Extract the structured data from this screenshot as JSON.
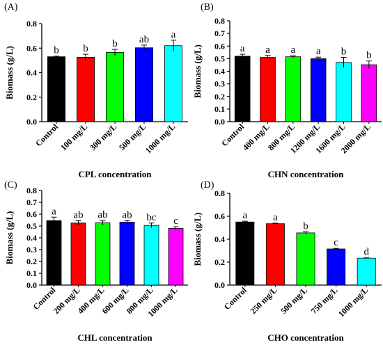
{
  "colors": [
    "#000000",
    "#ff0000",
    "#00ff00",
    "#0000ff",
    "#00ffff",
    "#ff00ff"
  ],
  "chart_data": [
    {
      "type": "bar",
      "panel_label": "(A)",
      "xlabel": "CPL concentration",
      "ylabel": "Biomass (g/L)",
      "ylim": [
        0,
        0.8
      ],
      "yticks": [
        "0.0",
        "0.2",
        "0.4",
        "0.6",
        "0.8"
      ],
      "categories": [
        "Control",
        "100 mg/L",
        "300 mg/L",
        "500 mg/L",
        "1000 mg/L"
      ],
      "values": [
        0.53,
        0.525,
        0.565,
        0.603,
        0.62
      ],
      "errors": [
        0.005,
        0.025,
        0.025,
        0.022,
        0.045
      ],
      "letters": [
        "b",
        "b",
        "b",
        "ab",
        "a"
      ]
    },
    {
      "type": "bar",
      "panel_label": "(B)",
      "xlabel": "CHN concentration",
      "ylabel": "Biomass (g/L)",
      "ylim": [
        0,
        0.8
      ],
      "yticks": [
        "0.0",
        "0.1",
        "0.2",
        "0.3",
        "0.4",
        "0.5",
        "0.6",
        "0.7",
        "0.8"
      ],
      "categories": [
        "Control",
        "400 mg/L",
        "800 mg/L",
        "1200 mg/L",
        "1600 mg/L",
        "2000 mg/L"
      ],
      "values": [
        0.52,
        0.51,
        0.515,
        0.5,
        0.47,
        0.452
      ],
      "errors": [
        0.015,
        0.015,
        0.008,
        0.012,
        0.04,
        0.03
      ],
      "letters": [
        "a",
        "a",
        "a",
        "a",
        "b",
        "b"
      ]
    },
    {
      "type": "bar",
      "panel_label": "(C)",
      "xlabel": "CHL concentration",
      "ylabel": "Biomass (g/L)",
      "ylim": [
        0,
        0.8
      ],
      "yticks": [
        "0.0",
        "0.1",
        "0.2",
        "0.3",
        "0.4",
        "0.5",
        "0.6",
        "0.7",
        "0.8"
      ],
      "categories": [
        "Control",
        "200 mg/L",
        "400 mg/L",
        "600 mg/L",
        "800 mg/L",
        "1000 mg/L"
      ],
      "values": [
        0.545,
        0.525,
        0.527,
        0.533,
        0.505,
        0.48
      ],
      "errors": [
        0.03,
        0.02,
        0.02,
        0.012,
        0.02,
        0.013
      ],
      "letters": [
        "a",
        "ab",
        "ab",
        "ab",
        "bc",
        "c"
      ]
    },
    {
      "type": "bar",
      "panel_label": "(D)",
      "xlabel": "CHO concentration",
      "ylabel": "Biomass (g/L)",
      "ylim": [
        0,
        0.8
      ],
      "yticks": [
        "0.0",
        "0.2",
        "0.4",
        "0.6",
        "0.8"
      ],
      "categories": [
        "Control",
        "250 mg/L",
        "500 mg/L",
        "750 mg/L",
        "1000 mg/L"
      ],
      "values": [
        0.55,
        0.535,
        0.455,
        0.315,
        0.235
      ],
      "errors": [
        0.007,
        0.005,
        0.01,
        0.005,
        0.003
      ],
      "letters": [
        "a",
        "a",
        "b",
        "c",
        "d"
      ]
    }
  ]
}
